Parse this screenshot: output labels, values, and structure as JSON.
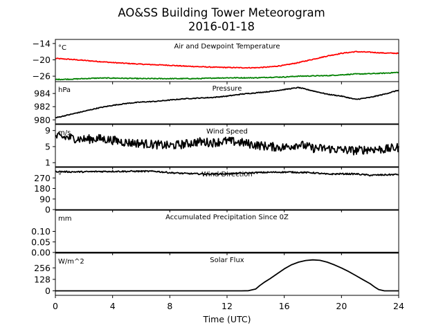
{
  "chart_data": {
    "type": "line",
    "title": "AO&SS Building Tower Meteorogram",
    "subtitle": "2016-01-18",
    "xlabel": "Time (UTC)",
    "xlim": [
      0,
      24
    ],
    "xticks": [
      0,
      4,
      8,
      12,
      16,
      20,
      24
    ],
    "panels": [
      {
        "title": "Air and Dewpoint Temperature",
        "unit": "°C",
        "ylim": [
          -28,
          -12.5
        ],
        "yticks": [
          -14,
          -20,
          -26
        ],
        "ytick_labels": [
          "−14",
          "−20",
          "−26"
        ],
        "series": [
          {
            "color": "#ff0000",
            "x": [
              0,
              1,
              2,
              3,
              4,
              5,
              6,
              7,
              8,
              9,
              10,
              11,
              12,
              13,
              14,
              15,
              16,
              17,
              18,
              19,
              20,
              21,
              22,
              23,
              24
            ],
            "y": [
              -19.5,
              -19.8,
              -20.2,
              -20.6,
              -21.0,
              -21.3,
              -21.6,
              -21.8,
              -22.0,
              -22.3,
              -22.5,
              -22.7,
              -22.8,
              -22.9,
              -22.9,
              -22.6,
              -22.0,
              -21.0,
              -19.8,
              -18.6,
              -17.6,
              -17.0,
              -17.2,
              -17.5,
              -17.6
            ]
          },
          {
            "color": "#008000",
            "x": [
              0,
              1,
              2,
              3,
              4,
              5,
              6,
              7,
              8,
              9,
              10,
              11,
              12,
              13,
              14,
              15,
              16,
              17,
              18,
              19,
              20,
              21,
              22,
              23,
              24
            ],
            "y": [
              -27.2,
              -27.1,
              -26.9,
              -26.7,
              -26.7,
              -26.8,
              -26.9,
              -26.9,
              -26.9,
              -26.9,
              -26.9,
              -26.7,
              -26.6,
              -26.6,
              -26.6,
              -26.4,
              -26.3,
              -26.0,
              -25.9,
              -25.8,
              -25.5,
              -25.2,
              -25.1,
              -24.9,
              -24.6
            ]
          }
        ]
      },
      {
        "title": "Pressure",
        "unit": "hPa",
        "ylim": [
          979.4,
          985.8
        ],
        "yticks": [
          984,
          982,
          980
        ],
        "ytick_labels": [
          "984",
          "982",
          "980"
        ],
        "series": [
          {
            "color": "#000000",
            "x": [
              0,
              1,
              2,
              3,
              4,
              5,
              6,
              7,
              8,
              9,
              10,
              11,
              12,
              13,
              14,
              15,
              16,
              17,
              18,
              19,
              20,
              21,
              22,
              23,
              24
            ],
            "y": [
              980.3,
              980.8,
              981.3,
              981.8,
              982.2,
              982.5,
              982.7,
              982.8,
              983.0,
              983.2,
              983.3,
              983.4,
              983.6,
              983.9,
              984.1,
              984.3,
              984.6,
              984.9,
              984.4,
              983.9,
              983.6,
              983.1,
              983.4,
              983.9,
              984.5
            ]
          }
        ]
      },
      {
        "title": "Wind Speed",
        "unit": "m/s",
        "ylim": [
          0,
          10.5
        ],
        "yticks": [
          9,
          5,
          1
        ],
        "ytick_labels": [
          "9",
          "5",
          "1"
        ],
        "series": [
          {
            "color": "#000000",
            "x": [
              0,
              1,
              2,
              3,
              4,
              5,
              6,
              7,
              8,
              9,
              10,
              11,
              12,
              13,
              14,
              15,
              16,
              17,
              18,
              19,
              20,
              21,
              22,
              23,
              24
            ],
            "y": [
              7.5,
              7.2,
              6.8,
              7.0,
              6.6,
              6.0,
              5.8,
              5.5,
              5.2,
              5.6,
              6.2,
              6.0,
              6.4,
              6.0,
              5.4,
              5.0,
              4.8,
              5.6,
              4.6,
              4.5,
              4.2,
              4.0,
              4.4,
              4.3,
              4.8
            ]
          }
        ]
      },
      {
        "title": "Wind Direction",
        "unit": "°",
        "ylim": [
          0,
          360
        ],
        "yticks": [
          270,
          180,
          90,
          0
        ],
        "ytick_labels": [
          "270",
          "180",
          "90",
          "0"
        ],
        "series": [
          {
            "color": "#000000",
            "x": [
              0,
              1,
              2,
              3,
              4,
              5,
              6,
              7,
              8,
              9,
              10,
              11,
              12,
              13,
              14,
              15,
              16,
              17,
              18,
              19,
              20,
              21,
              22,
              23,
              24
            ],
            "y": [
              325,
              322,
              322,
              325,
              326,
              326,
              327,
              326,
              315,
              308,
              305,
              303,
              306,
              310,
              315,
              318,
              320,
              318,
              314,
              302,
              305,
              304,
              293,
              296,
              300
            ]
          }
        ]
      },
      {
        "title": "Accumulated Precipitation Since 0Z",
        "unit": "mm",
        "ylim": [
          0,
          0.2
        ],
        "yticks": [
          0.1,
          0.05,
          0.0
        ],
        "ytick_labels": [
          "0.10",
          "0.05",
          "0.00"
        ],
        "series": [
          {
            "color": "#000000",
            "x": [
              0,
              24
            ],
            "y": [
              0,
              0
            ]
          }
        ]
      },
      {
        "title": "Solar Flux",
        "unit": "W/m^2",
        "ylim": [
          -50,
          420
        ],
        "yticks": [
          256,
          128,
          0
        ],
        "ytick_labels": [
          "256",
          "128",
          "0"
        ],
        "series": [
          {
            "color": "#000000",
            "x": [
              0,
              13,
              13.5,
              14,
              14.3,
              14.6,
              15,
              15.5,
              16,
              16.5,
              17,
              17.5,
              18,
              18.5,
              19,
              19.5,
              20,
              20.5,
              21,
              21.5,
              22,
              22.3,
              22.6,
              23,
              24
            ],
            "y": [
              0,
              0,
              2,
              20,
              60,
              95,
              135,
              190,
              245,
              290,
              320,
              338,
              345,
              340,
              320,
              290,
              255,
              215,
              170,
              125,
              80,
              45,
              15,
              0,
              0
            ]
          }
        ]
      }
    ]
  }
}
